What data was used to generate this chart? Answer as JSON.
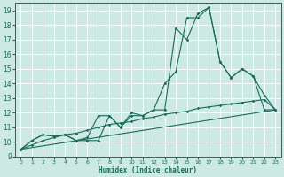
{
  "xlabel": "Humidex (Indice chaleur)",
  "xlim": [
    -0.5,
    23.5
  ],
  "ylim": [
    9,
    19.5
  ],
  "xticks": [
    0,
    1,
    2,
    3,
    4,
    5,
    6,
    7,
    8,
    9,
    10,
    11,
    12,
    13,
    14,
    15,
    16,
    17,
    18,
    19,
    20,
    21,
    22,
    23
  ],
  "yticks": [
    9,
    10,
    11,
    12,
    13,
    14,
    15,
    16,
    17,
    18,
    19
  ],
  "background_color": "#cce9e4",
  "grid_color": "#ffffff",
  "line_color": "#1a6b5a",
  "s1x": [
    0,
    1,
    2,
    3,
    4,
    5,
    6,
    7,
    8,
    9,
    10,
    11,
    12,
    13,
    14,
    15,
    16,
    17,
    18,
    19,
    20,
    21,
    22,
    23
  ],
  "s1y": [
    9.5,
    10.1,
    10.5,
    10.4,
    10.5,
    10.1,
    10.1,
    10.1,
    11.8,
    11.0,
    11.8,
    11.8,
    12.2,
    14.0,
    14.8,
    18.5,
    18.5,
    19.2,
    15.5,
    14.4,
    15.0,
    14.5,
    12.2,
    12.2
  ],
  "s2x": [
    0,
    1,
    2,
    3,
    4,
    5,
    6,
    7,
    8,
    9,
    10,
    11,
    12,
    13,
    14,
    15,
    16,
    17,
    18,
    19,
    20,
    21,
    22,
    23
  ],
  "s2y": [
    9.5,
    10.1,
    10.5,
    10.4,
    10.5,
    10.1,
    10.3,
    11.8,
    11.8,
    11.0,
    12.0,
    11.8,
    12.2,
    12.2,
    17.8,
    17.0,
    18.8,
    19.2,
    15.5,
    14.4,
    15.0,
    14.5,
    13.2,
    12.2
  ],
  "s3x": [
    0,
    1,
    2,
    3,
    4,
    5,
    6,
    7,
    8,
    9,
    10,
    11,
    12,
    13,
    14,
    15,
    16,
    17,
    18,
    19,
    20,
    21,
    22,
    23
  ],
  "s3y": [
    9.5,
    9.8,
    10.1,
    10.3,
    10.5,
    10.6,
    10.8,
    11.0,
    11.2,
    11.3,
    11.4,
    11.6,
    11.7,
    11.9,
    12.0,
    12.1,
    12.3,
    12.4,
    12.5,
    12.6,
    12.7,
    12.8,
    12.9,
    12.2
  ],
  "s4x": [
    0,
    23
  ],
  "s4y": [
    9.5,
    12.2
  ]
}
